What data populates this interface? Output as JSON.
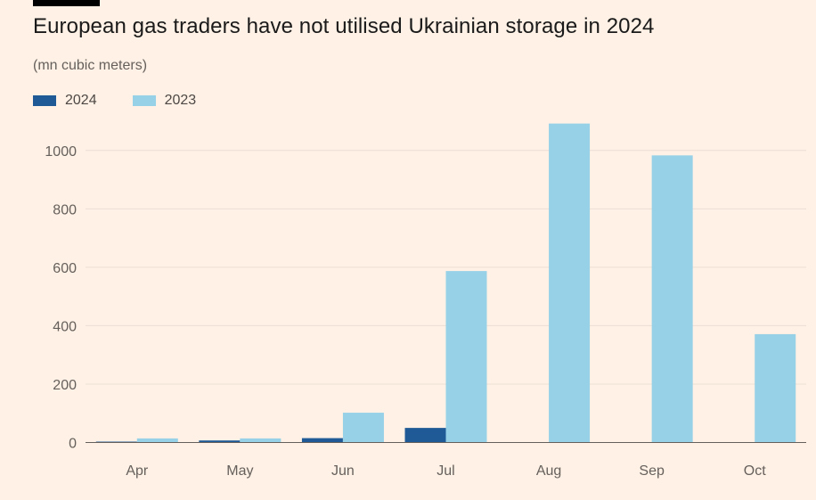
{
  "title": "European gas traders have not utilised Ukrainian storage in 2024",
  "subtitle": "(mn cubic meters)",
  "colors": {
    "2024": "#1F5A96",
    "2023": "#96D1E8",
    "background": "#FFF1E5",
    "gridline": "#ebded3"
  },
  "chart_data": {
    "type": "bar",
    "categories": [
      "Apr",
      "May",
      "Jun",
      "Jul",
      "Aug",
      "Sep",
      "Oct"
    ],
    "series": [
      {
        "name": "2024",
        "values": [
          3,
          7,
          15,
          50,
          0,
          0,
          0
        ]
      },
      {
        "name": "2023",
        "values": [
          14,
          14,
          102,
          587,
          1092,
          983,
          371
        ]
      }
    ],
    "ylim": [
      0,
      1100
    ],
    "yticks": [
      0,
      200,
      400,
      600,
      800,
      1000
    ],
    "grid": true,
    "legend_position": "top-left"
  }
}
